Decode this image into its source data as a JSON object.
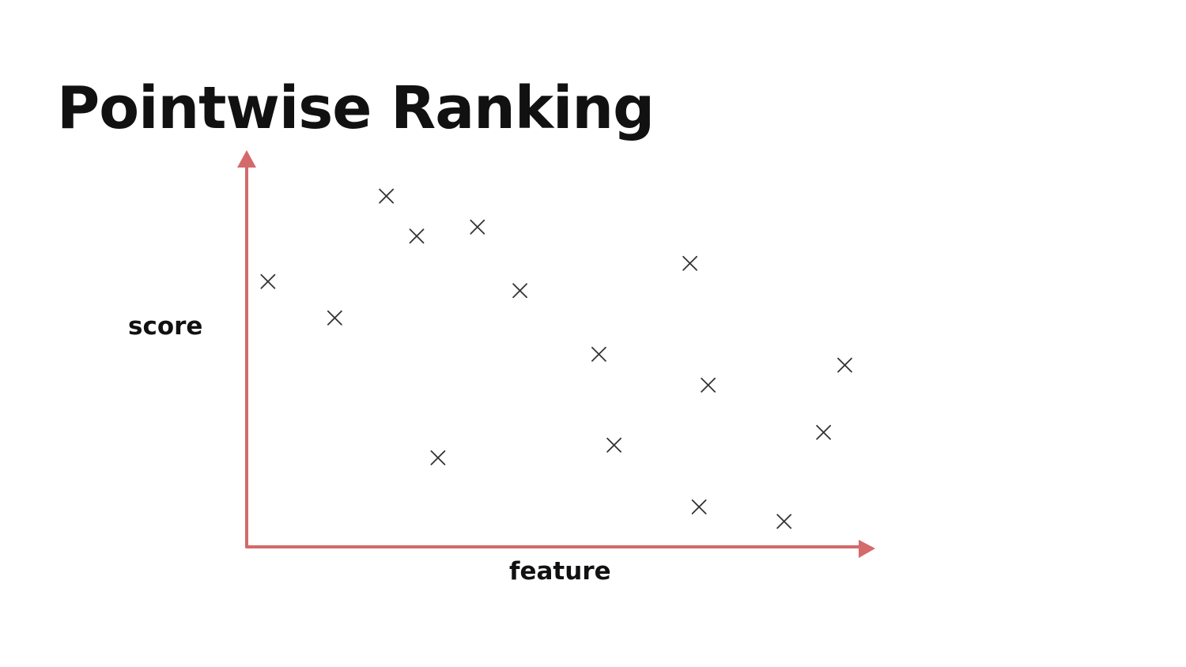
{
  "slide": {
    "title": "Pointwise Ranking"
  },
  "chart_data": {
    "type": "scatter",
    "title": "Pointwise Ranking",
    "xlabel": "feature",
    "ylabel": "score",
    "xlim": [
      0,
      100
    ],
    "ylim": [
      0,
      100
    ],
    "grid": false,
    "ticks": false,
    "marker": "x",
    "axis_color": "#d46a6a",
    "marker_color": "#333333",
    "points": [
      {
        "x": 3.5,
        "y": 73
      },
      {
        "x": 14.5,
        "y": 63
      },
      {
        "x": 23,
        "y": 96.5
      },
      {
        "x": 28,
        "y": 85.5
      },
      {
        "x": 38,
        "y": 88
      },
      {
        "x": 31.5,
        "y": 24.5
      },
      {
        "x": 45,
        "y": 70.5
      },
      {
        "x": 58,
        "y": 53
      },
      {
        "x": 60.5,
        "y": 28
      },
      {
        "x": 73,
        "y": 78
      },
      {
        "x": 76,
        "y": 44.5
      },
      {
        "x": 74.5,
        "y": 11
      },
      {
        "x": 88.5,
        "y": 7
      },
      {
        "x": 95,
        "y": 31.5
      },
      {
        "x": 98.5,
        "y": 50
      }
    ]
  }
}
